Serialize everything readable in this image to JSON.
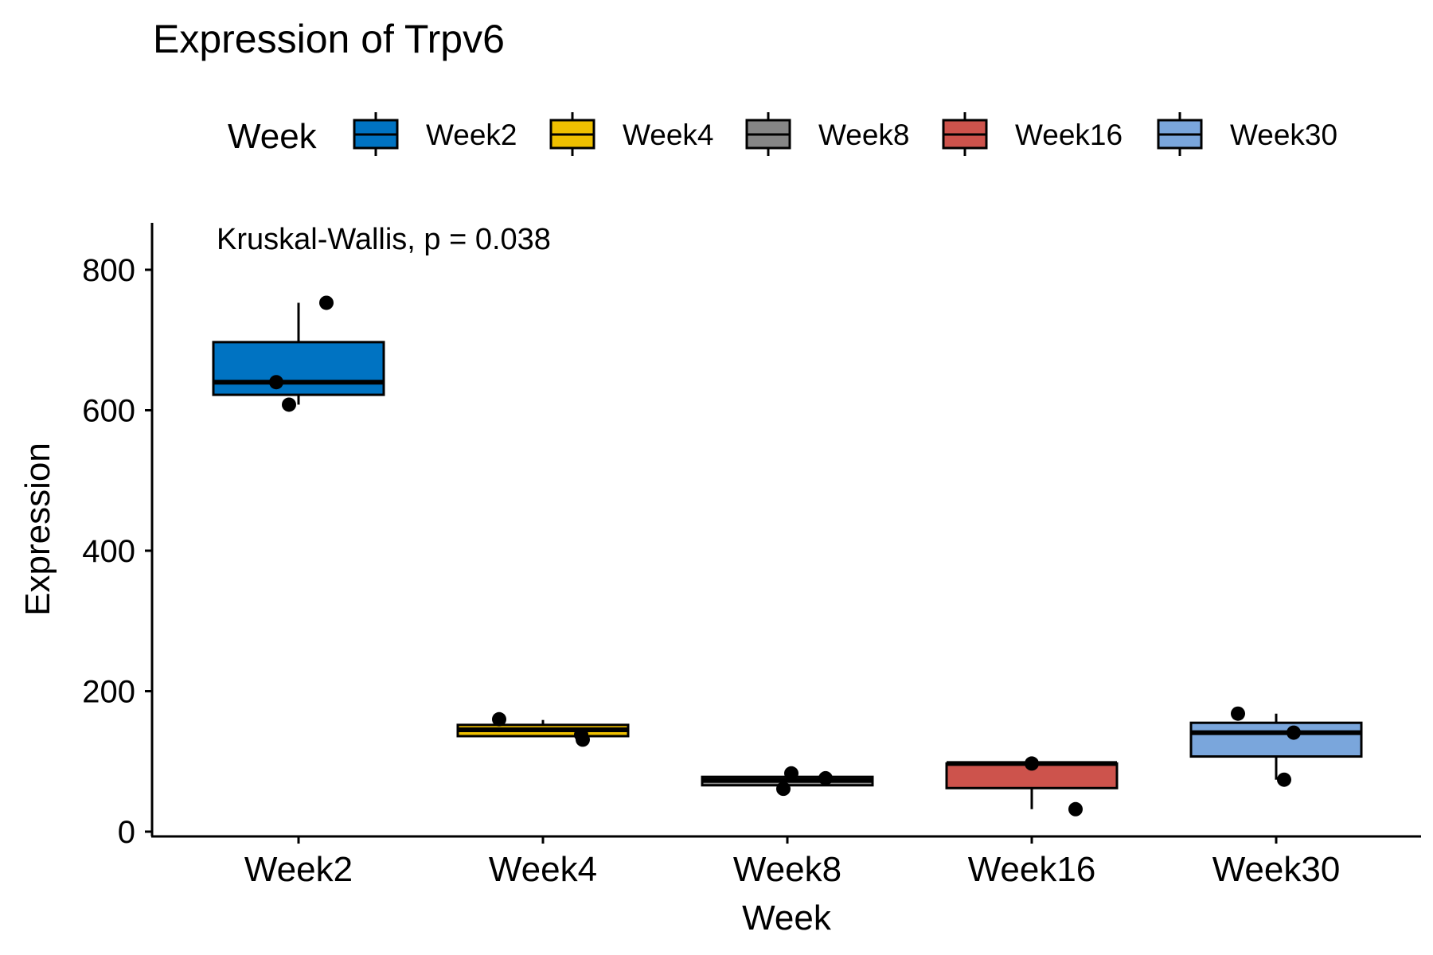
{
  "chart_data": {
    "type": "boxplot",
    "title": "Expression of Trpv6",
    "xlabel": "Week",
    "ylabel": "Expression",
    "ylim": [
      0,
      870
    ],
    "yticks": [
      0,
      200,
      400,
      600,
      800
    ],
    "annotation": "Kruskal-Wallis, p = 0.038",
    "legend": {
      "title": "Week",
      "position": "top"
    },
    "grid": false,
    "categories": [
      "Week2",
      "Week4",
      "Week8",
      "Week16",
      "Week30"
    ],
    "series": [
      {
        "name": "Week2",
        "color": "#0073C2",
        "whisker_low": 608,
        "q1": 622,
        "median": 640,
        "q3": 697,
        "whisker_high": 753,
        "points": [
          753,
          640,
          608
        ]
      },
      {
        "name": "Week4",
        "color": "#EFC000",
        "whisker_low": 136,
        "q1": 136,
        "median": 145,
        "q3": 152,
        "whisker_high": 159,
        "points": [
          160,
          138,
          131
        ]
      },
      {
        "name": "Week8",
        "color": "#868686",
        "whisker_low": 66,
        "q1": 66,
        "median": 73,
        "q3": 78,
        "whisker_high": 83,
        "points": [
          83,
          61,
          76
        ]
      },
      {
        "name": "Week16",
        "color": "#CD534C",
        "whisker_low": 32,
        "q1": 62,
        "median": 97,
        "q3": 97,
        "whisker_high": 98,
        "points": [
          97,
          32
        ]
      },
      {
        "name": "Week30",
        "color": "#7AA6DC",
        "whisker_low": 74,
        "q1": 107,
        "median": 141,
        "q3": 155,
        "whisker_high": 168,
        "points": [
          168,
          141,
          74
        ]
      }
    ]
  }
}
